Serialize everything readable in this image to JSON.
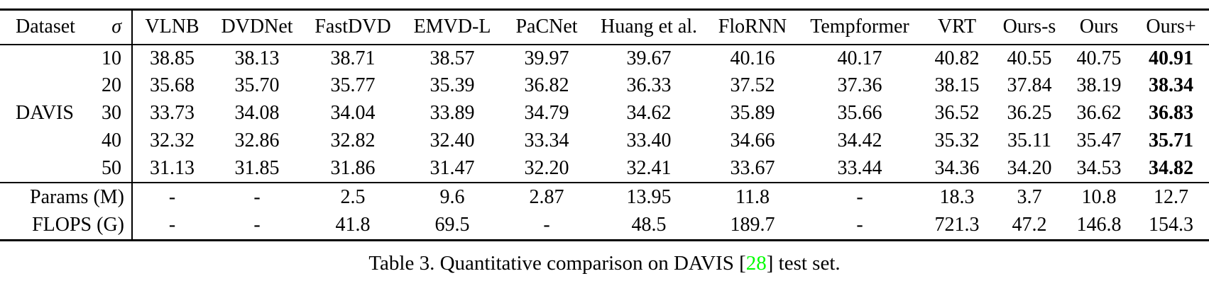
{
  "table": {
    "headers": {
      "dataset": "Dataset",
      "sigma": "σ",
      "methods": [
        "VLNB",
        "DVDNet",
        "FastDVD",
        "EMVD-L",
        "PaCNet",
        "Huang et al.",
        "FloRNN",
        "Tempformer",
        "VRT",
        "Ours-s",
        "Ours",
        "Ours+"
      ]
    },
    "dataset_label": "DAVIS",
    "dataset_label_row_index": 2,
    "bold_column_index": 11,
    "noise_rows": [
      {
        "sigma": "10",
        "values": [
          "38.85",
          "38.13",
          "38.71",
          "38.57",
          "39.97",
          "39.67",
          "40.16",
          "40.17",
          "40.82",
          "40.55",
          "40.75",
          "40.91"
        ]
      },
      {
        "sigma": "20",
        "values": [
          "35.68",
          "35.70",
          "35.77",
          "35.39",
          "36.82",
          "36.33",
          "37.52",
          "37.36",
          "38.15",
          "37.84",
          "38.19",
          "38.34"
        ]
      },
      {
        "sigma": "30",
        "values": [
          "33.73",
          "34.08",
          "34.04",
          "33.89",
          "34.79",
          "34.62",
          "35.89",
          "35.66",
          "36.52",
          "36.25",
          "36.62",
          "36.83"
        ]
      },
      {
        "sigma": "40",
        "values": [
          "32.32",
          "32.86",
          "32.82",
          "32.40",
          "33.34",
          "33.40",
          "34.66",
          "34.42",
          "35.32",
          "35.11",
          "35.47",
          "35.71"
        ]
      },
      {
        "sigma": "50",
        "values": [
          "31.13",
          "31.85",
          "31.86",
          "31.47",
          "32.20",
          "32.41",
          "33.67",
          "33.44",
          "34.36",
          "34.20",
          "34.53",
          "34.82"
        ]
      }
    ],
    "footer_rows": [
      {
        "label": "Params (M)",
        "values": [
          "-",
          "-",
          "2.5",
          "9.6",
          "2.87",
          "13.95",
          "11.8",
          "-",
          "18.3",
          "3.7",
          "10.8",
          "12.7"
        ]
      },
      {
        "label": "FLOPS (G)",
        "values": [
          "-",
          "-",
          "41.8",
          "69.5",
          "-",
          "48.5",
          "189.7",
          "-",
          "721.3",
          "47.2",
          "146.8",
          "154.3"
        ]
      }
    ]
  },
  "caption": {
    "prefix": "Table 3. Quantitative comparison on DAVIS [",
    "citation": "28",
    "suffix": "] test set."
  },
  "colors": {
    "text": "#000000",
    "background": "#ffffff",
    "rule": "#000000",
    "citation_green": "#00FF00"
  }
}
